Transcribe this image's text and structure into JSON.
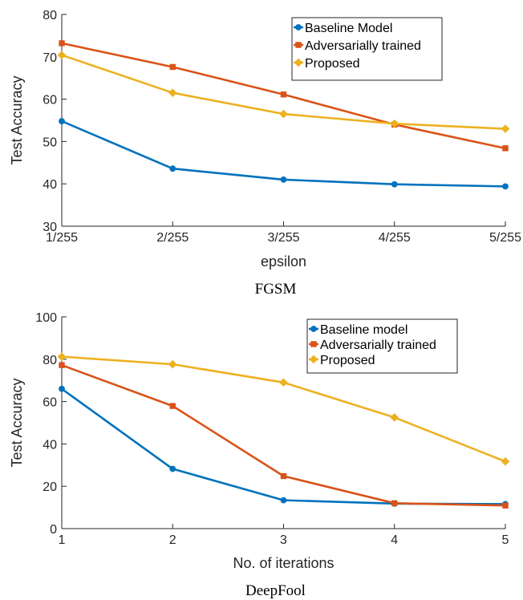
{
  "colors": {
    "baseline": "#0072BD",
    "adversarial": "#D95319",
    "proposed": "#EDB120"
  },
  "chart_data": [
    {
      "type": "line",
      "caption": "FGSM",
      "xlabel": "epsilon",
      "ylabel": "Test Accuracy",
      "categories": [
        "1/255",
        "2/255",
        "3/255",
        "4/255",
        "5/255"
      ],
      "ylim": [
        30,
        80
      ],
      "yticks": [
        30,
        40,
        50,
        60,
        70,
        80
      ],
      "legend_position": "top-right",
      "grid": false,
      "series": [
        {
          "name": "Baseline Model",
          "color": "#0072BD",
          "marker": "circle",
          "values": [
            54.8,
            43.6,
            41.0,
            39.9,
            39.4
          ]
        },
        {
          "name": "Adversarially trained",
          "color": "#D95319",
          "marker": "square",
          "values": [
            73.2,
            67.6,
            61.1,
            54.0,
            48.4
          ]
        },
        {
          "name": "Proposed",
          "color": "#EDB120",
          "marker": "diamond",
          "values": [
            70.4,
            61.5,
            56.5,
            54.2,
            53.0
          ]
        }
      ]
    },
    {
      "type": "line",
      "caption": "DeepFool",
      "xlabel": "No. of iterations",
      "ylabel": "Test Accuracy",
      "categories": [
        "1",
        "2",
        "3",
        "4",
        "5"
      ],
      "ylim": [
        0,
        100
      ],
      "yticks": [
        0,
        20,
        40,
        60,
        80,
        100
      ],
      "legend_position": "top-right",
      "grid": false,
      "series": [
        {
          "name": "Baseline model",
          "color": "#0072BD",
          "marker": "circle",
          "values": [
            66.0,
            28.2,
            13.4,
            11.8,
            11.6
          ]
        },
        {
          "name": "Adversarially trained",
          "color": "#D95319",
          "marker": "square",
          "values": [
            77.2,
            57.9,
            24.8,
            12.0,
            10.9
          ]
        },
        {
          "name": "Proposed",
          "color": "#EDB120",
          "marker": "diamond",
          "values": [
            81.2,
            77.6,
            69.0,
            52.5,
            31.7
          ]
        }
      ]
    }
  ]
}
